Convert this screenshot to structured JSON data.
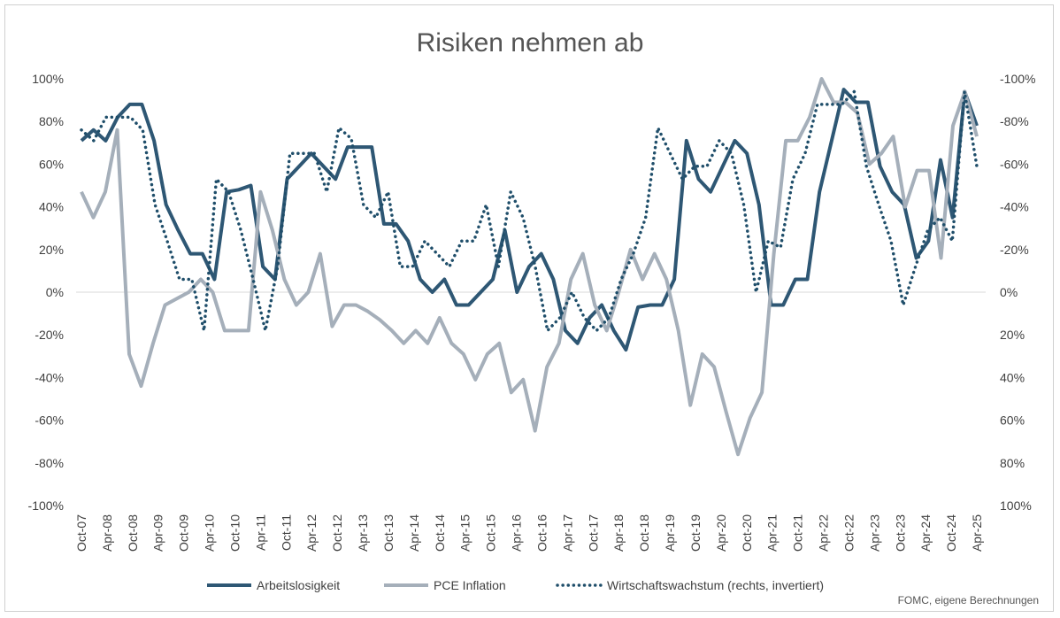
{
  "chart_data": {
    "type": "line",
    "title": "Risiken nehmen ab",
    "source": "FOMC, eigene Berechnungen",
    "x_tick_labels": [
      "Oct-07",
      "Apr-08",
      "Oct-08",
      "Apr-09",
      "Oct-09",
      "Apr-10",
      "Oct-10",
      "Apr-11",
      "Oct-11",
      "Apr-12",
      "Oct-12",
      "Apr-13",
      "Oct-13",
      "Apr-14",
      "Oct-14",
      "Apr-15",
      "Oct-15",
      "Apr-16",
      "Oct-16",
      "Apr-17",
      "Oct-17",
      "Apr-18",
      "Oct-18",
      "Apr-19",
      "Oct-19",
      "Apr-20",
      "Oct-20",
      "Apr-21",
      "Oct-21",
      "Apr-22",
      "Oct-22",
      "Apr-23",
      "Oct-23",
      "Apr-24",
      "Oct-24",
      "Apr-25"
    ],
    "left_axis": {
      "ylim": [
        -100,
        100
      ],
      "ticks": [
        "100%",
        "80%",
        "60%",
        "40%",
        "20%",
        "0%",
        "-20%",
        "-40%",
        "-60%",
        "-80%",
        "-100%"
      ]
    },
    "right_axis": {
      "ylim": [
        -100,
        100
      ],
      "inverted": true,
      "ticks": [
        "-100%",
        "-80%",
        "-60%",
        "-40%",
        "-20%",
        "0%",
        "20%",
        "40%",
        "60%",
        "80%",
        "100%"
      ]
    },
    "legend_position": "bottom",
    "series": [
      {
        "name": "Arbeitslosigkeit",
        "axis": "left",
        "color": "#2e5774",
        "style": "solid",
        "values": [
          71,
          76,
          71,
          82,
          88,
          88,
          71,
          41,
          29,
          18,
          18,
          6,
          47,
          48,
          50,
          12,
          6,
          53,
          59,
          65,
          59,
          53,
          68,
          68,
          68,
          32,
          32,
          24,
          6,
          0,
          6,
          -6,
          -6,
          0,
          6,
          29,
          0,
          12,
          18,
          6,
          -18,
          -24,
          -12,
          -6,
          -18,
          -27,
          -7,
          -6,
          -6,
          6,
          71,
          53,
          47,
          59,
          71,
          65,
          41,
          -6,
          -6,
          6,
          6,
          47,
          71,
          95,
          89,
          89,
          59,
          47,
          41,
          16,
          24,
          62,
          35,
          94,
          78
        ]
      },
      {
        "name": "PCE Inflation",
        "axis": "left",
        "color": "#a5afba",
        "style": "solid",
        "values": [
          47,
          35,
          47,
          76,
          -29,
          -44,
          -24,
          -6,
          -3,
          0,
          6,
          0,
          -18,
          -18,
          -18,
          47,
          29,
          6,
          -6,
          0,
          18,
          -16,
          -6,
          -6,
          -9,
          -13,
          -18,
          -24,
          -18,
          -24,
          -12,
          -24,
          -29,
          -41,
          -29,
          -24,
          -47,
          -41,
          -65,
          -35,
          -24,
          6,
          18,
          -6,
          -18,
          0,
          20,
          6,
          18,
          6,
          -18,
          -53,
          -29,
          -35,
          -56,
          -76,
          -59,
          -47,
          18,
          71,
          71,
          82,
          100,
          89,
          89,
          84,
          60,
          65,
          73,
          40,
          57,
          57,
          16,
          78,
          94,
          73
        ]
      },
      {
        "name": "Wirtschaftswachstum (rechts, invertiert)",
        "axis": "right",
        "color": "#1f4e6a",
        "style": "dotted",
        "values": [
          -76,
          -71,
          -82,
          -82,
          -82,
          -76,
          -41,
          -24,
          -6,
          -6,
          18,
          -53,
          -47,
          -29,
          -6,
          18,
          -12,
          -65,
          -65,
          -65,
          -47,
          -77,
          -72,
          -41,
          -35,
          -47,
          -12,
          -12,
          -24,
          -18,
          -12,
          -24,
          -24,
          -41,
          -12,
          -47,
          -35,
          -12,
          18,
          12,
          0,
          12,
          18,
          12,
          -6,
          -18,
          -35,
          -77,
          -65,
          -53,
          -59,
          -59,
          -71,
          -65,
          -41,
          0,
          -24,
          -21,
          -53,
          -65,
          -88,
          -88,
          -88,
          -94,
          -59,
          -41,
          -24,
          6,
          -12,
          -29,
          -35,
          -24,
          -94,
          -59
        ]
      }
    ]
  }
}
